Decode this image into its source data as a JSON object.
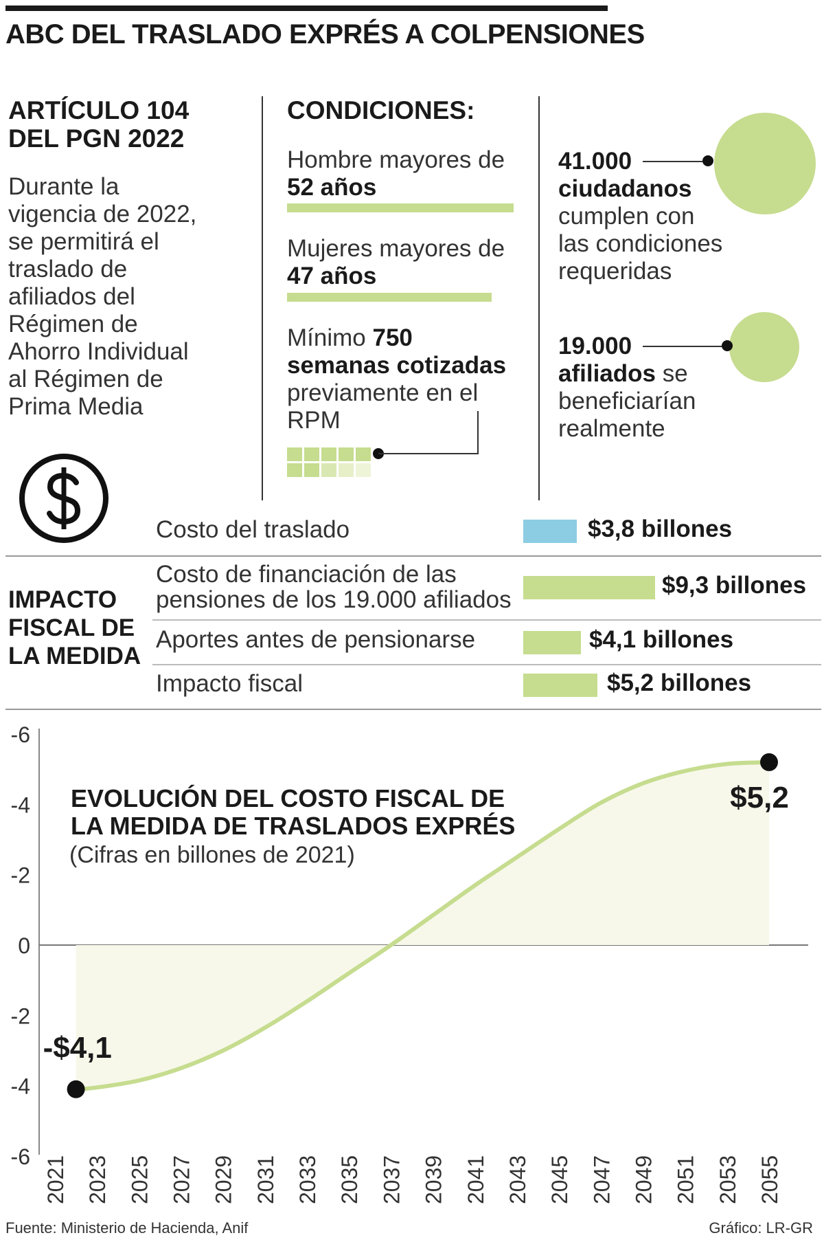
{
  "header": {
    "title": "ABC DEL TRASLADO EXPRÉS A COLPENSIONES"
  },
  "article": {
    "heading_line1": "ARTÍCULO 104",
    "heading_line2": "DEL PGN 2022",
    "lines": [
      "Durante la",
      "vigencia de 2022,",
      "se permitirá el",
      "traslado de",
      "afiliados del",
      "Régimen de",
      "Ahorro Individual",
      "al Régimen de",
      "Prima Media"
    ]
  },
  "conditions": {
    "heading": "CONDICIONES:",
    "men_text": "Hombre mayores de",
    "men_value": "52 años",
    "women_text": "Mujeres mayores de",
    "women_value": "47 años",
    "weeks_prefix": "Mínimo",
    "weeks_number": "750",
    "weeks_bold": "semanas cotizadas",
    "weeks_line3": "previamente en el",
    "weeks_line4": "RPM"
  },
  "stats": {
    "s1_number": "41.000",
    "s1_bold": "ciudadanos",
    "s1_line3": "cumplen con",
    "s1_line4": "las condiciones",
    "s1_line5": "requeridas",
    "s2_number": "19.000",
    "s2_bold": "afiliados",
    "s2_rest": "se",
    "s2_line3": "beneficiarían",
    "s2_line4": "realmente"
  },
  "icons": {
    "dollar": "dollar-circle-icon",
    "weeks": "calendar-grid-icon"
  },
  "costs": {
    "impact_title_lines": [
      "IMPACTO",
      "FISCAL DE",
      "LA MEDIDA"
    ],
    "rows": [
      {
        "label": "Costo del traslado",
        "value": "$3,8 billones",
        "amount": 3.8,
        "color": "#8ccde3"
      },
      {
        "label_line1": "Costo de financiación de las",
        "label_line2": "pensiones de los 19.000 afiliados",
        "value": "$9,3 billones",
        "amount": 9.3,
        "color": "#c6dc8f"
      },
      {
        "label": "Aportes antes de pensionarse",
        "value": "$4,1 billones",
        "amount": 4.1,
        "color": "#c6dc8f"
      },
      {
        "label": "Impacto fiscal",
        "value": "$5,2 billones",
        "amount": 5.2,
        "color": "#c6dc8f"
      }
    ]
  },
  "chart_data": {
    "type": "area",
    "title_line1": "EVOLUCIÓN DEL COSTO FISCAL DE",
    "title_line2": "LA MEDIDA DE TRASLADOS EXPRÉS",
    "subtitle": "(Cifras en billones de 2021)",
    "x": [
      2022,
      2023,
      2025,
      2027,
      2029,
      2031,
      2033,
      2035,
      2037,
      2039,
      2041,
      2043,
      2045,
      2047,
      2049,
      2051,
      2053,
      2055
    ],
    "y": [
      -4.1,
      -4.05,
      -3.85,
      -3.5,
      -3.0,
      -2.35,
      -1.6,
      -0.8,
      0.0,
      0.85,
      1.7,
      2.5,
      3.3,
      4.05,
      4.6,
      4.95,
      5.15,
      5.2
    ],
    "x_ticks": [
      "2021",
      "2023",
      "2025",
      "2027",
      "2029",
      "2031",
      "2033",
      "2035",
      "2037",
      "2039",
      "2041",
      "2043",
      "2045",
      "2047",
      "2049",
      "2051",
      "2053",
      "2055"
    ],
    "y_ticks": [
      "-6",
      "-4",
      "-2",
      "0",
      "-2",
      "-4",
      "-6"
    ],
    "ylim": [
      -6,
      6
    ],
    "xlim": [
      2021,
      2055
    ],
    "start_label": "-$4,1",
    "end_label": "$5,2",
    "line_color": "#c6dc8f",
    "fill_color": "#f7f8ea"
  },
  "footer": {
    "source": "Fuente: Ministerio de Hacienda, Anif",
    "credit": "Gráfico: LR-GR"
  }
}
